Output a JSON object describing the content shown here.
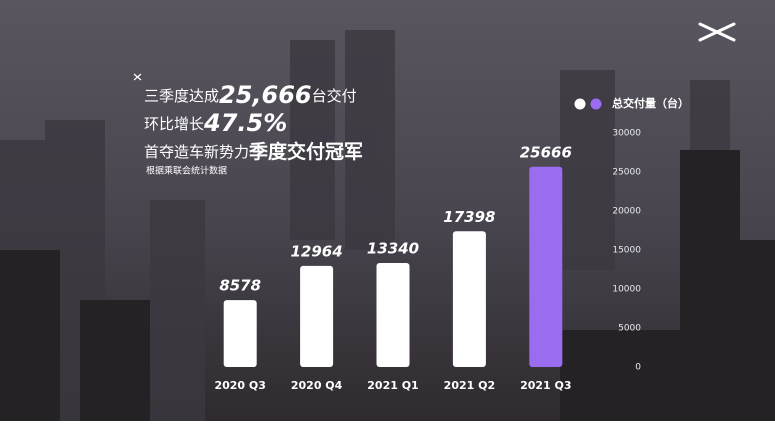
{
  "chart_data": {
    "type": "bar",
    "headline": {
      "line1": [
        "三季度达成",
        "25,666",
        "台交付"
      ],
      "line2": [
        "环比增长",
        "47.5%"
      ],
      "line3": [
        "首夺造车新势力",
        "季度交付冠军"
      ],
      "note": "根据乘联会统计数据"
    },
    "categories": [
      "2020 Q3",
      "2020 Q4",
      "2021 Q1",
      "2021 Q2",
      "2021 Q3"
    ],
    "series": [
      {
        "name": "总交付量（台）",
        "colors": [
          "#ffffff",
          "#ffffff",
          "#ffffff",
          "#ffffff",
          "#9a6cf0"
        ],
        "values": [
          8578,
          12964,
          13340,
          17398,
          25666
        ]
      }
    ],
    "ylim": [
      0,
      30000
    ],
    "yticks": [
      0,
      5000,
      10000,
      15000,
      20000,
      25000,
      30000
    ],
    "yaxis_side": "right"
  }
}
